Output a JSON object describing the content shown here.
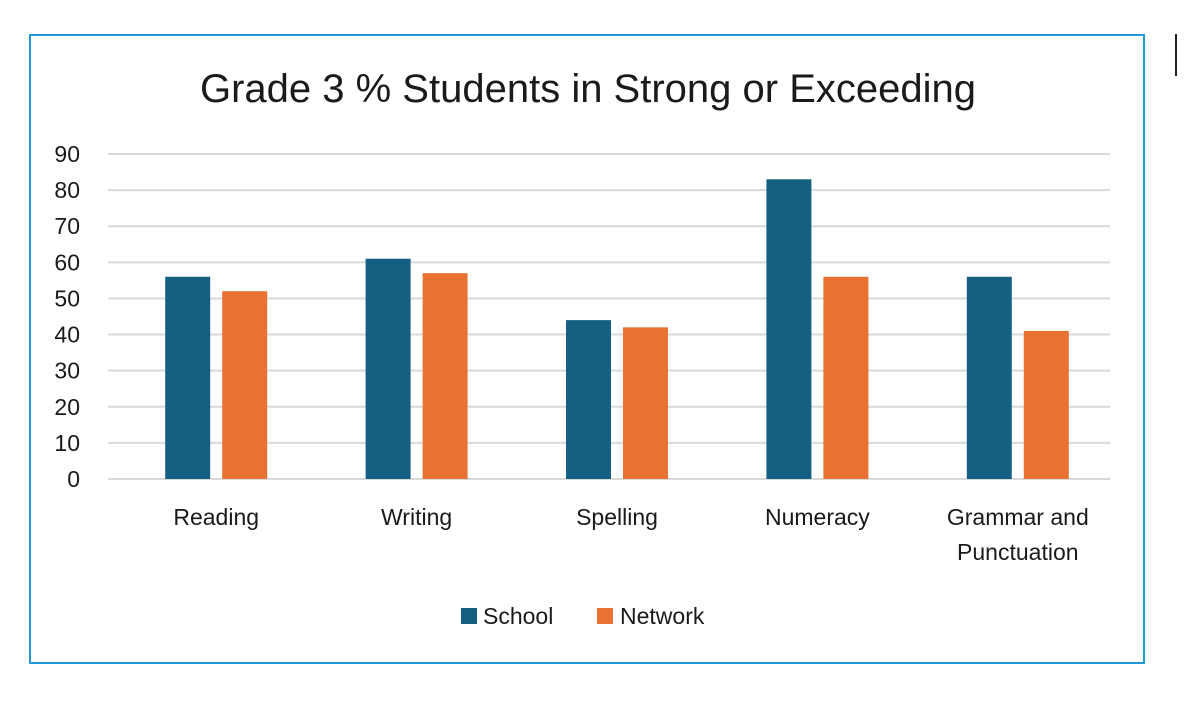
{
  "chart_data": {
    "type": "bar",
    "title": "Grade 3 % Students in Strong or Exceeding",
    "categories": [
      [
        "Reading"
      ],
      [
        "Writing"
      ],
      [
        "Spelling"
      ],
      [
        "Numeracy"
      ],
      [
        "Grammar and",
        "Punctuation"
      ]
    ],
    "series": [
      {
        "name": "School",
        "values": [
          56,
          61,
          44,
          83,
          56
        ],
        "color": "#156082"
      },
      {
        "name": "Network",
        "values": [
          52,
          57,
          42,
          56,
          41
        ],
        "color": "#e97132"
      }
    ],
    "ylim": [
      0,
      90
    ],
    "yticks": [
      0,
      10,
      20,
      30,
      40,
      50,
      60,
      70,
      80,
      90
    ],
    "grid": true,
    "legend_position": "bottom",
    "colors": {
      "gridline": "#d9d9d9",
      "text": "#1a1a1a",
      "frame": "#1f9ad6"
    }
  }
}
